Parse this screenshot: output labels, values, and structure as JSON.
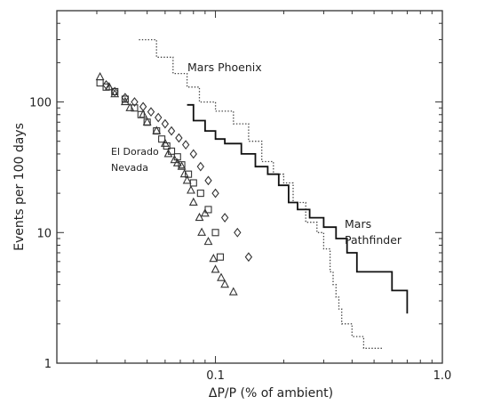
{
  "chart_data": {
    "type": "scatter",
    "xlabel": "ΔP/P (% of ambient)",
    "ylabel": "Events per 100 days",
    "x_scale": "log",
    "y_scale": "log",
    "xlim": [
      0.02,
      1.0
    ],
    "ylim": [
      1,
      500
    ],
    "x_ticks": [
      {
        "value": 0.1,
        "label": "0.1"
      },
      {
        "value": 1.0,
        "label": "1.0"
      }
    ],
    "y_ticks": [
      {
        "value": 1,
        "label": "1"
      },
      {
        "value": 10,
        "label": "10"
      },
      {
        "value": 100,
        "label": "100"
      }
    ],
    "grid": false,
    "annotations": [
      {
        "text": "Mars Phoenix"
      },
      {
        "text": "Mars"
      },
      {
        "text": "Pathfinder"
      },
      {
        "text": "El Dorado"
      },
      {
        "text": "Nevada"
      }
    ],
    "series": [
      {
        "name": "Mars Phoenix",
        "style": "dotted-step",
        "color": "#444444",
        "x": [
          0.046,
          0.055,
          0.065,
          0.075,
          0.085,
          0.1,
          0.12,
          0.14,
          0.16,
          0.18,
          0.2,
          0.22,
          0.25,
          0.28,
          0.3,
          0.32,
          0.33,
          0.34,
          0.35,
          0.36,
          0.4,
          0.42,
          0.45,
          0.5,
          0.55
        ],
        "y": [
          300,
          220,
          165,
          130,
          100,
          85,
          68,
          50,
          35,
          28,
          24,
          17,
          12,
          10,
          7.5,
          5,
          4,
          3.2,
          2.6,
          2.0,
          1.6,
          1.6,
          1.3,
          1.3,
          1.3
        ]
      },
      {
        "name": "Mars Pathfinder",
        "style": "solid-step",
        "color": "#111111",
        "x": [
          0.075,
          0.08,
          0.09,
          0.1,
          0.11,
          0.13,
          0.15,
          0.17,
          0.19,
          0.21,
          0.23,
          0.26,
          0.3,
          0.34,
          0.38,
          0.42,
          0.5,
          0.6,
          0.7
        ],
        "y": [
          95,
          72,
          60,
          52,
          48,
          40,
          32,
          28,
          23,
          17,
          15,
          13,
          11,
          9,
          7,
          5,
          5,
          3.6,
          2.4
        ]
      },
      {
        "name": "El Dorado triangles",
        "marker": "triangle",
        "color": "#333333",
        "x": [
          0.031,
          0.034,
          0.036,
          0.04,
          0.042,
          0.048,
          0.05,
          0.055,
          0.06,
          0.062,
          0.066,
          0.068,
          0.071,
          0.073,
          0.075,
          0.078,
          0.08,
          0.085,
          0.087,
          0.09,
          0.093,
          0.098,
          0.1,
          0.106,
          0.11,
          0.12
        ],
        "y": [
          155,
          130,
          115,
          100,
          90,
          80,
          70,
          60,
          48,
          40,
          36,
          34,
          32,
          28,
          25,
          21,
          17,
          13,
          10,
          14,
          8.5,
          6.3,
          5.2,
          4.5,
          4.0,
          3.5
        ]
      },
      {
        "name": "El Dorado squares",
        "marker": "square",
        "color": "#333333",
        "x": [
          0.031,
          0.033,
          0.036,
          0.04,
          0.044,
          0.047,
          0.05,
          0.055,
          0.058,
          0.061,
          0.064,
          0.068,
          0.071,
          0.076,
          0.08,
          0.086,
          0.093,
          0.1,
          0.105
        ],
        "y": [
          140,
          130,
          120,
          105,
          90,
          80,
          70,
          60,
          52,
          46,
          42,
          38,
          33,
          28,
          24,
          20,
          15,
          10,
          6.5
        ]
      },
      {
        "name": "Nevada diamonds",
        "marker": "diamond",
        "color": "#333333",
        "x": [
          0.033,
          0.036,
          0.04,
          0.044,
          0.048,
          0.052,
          0.056,
          0.06,
          0.064,
          0.069,
          0.074,
          0.08,
          0.086,
          0.093,
          0.1,
          0.11,
          0.125,
          0.14
        ],
        "y": [
          135,
          120,
          108,
          100,
          92,
          84,
          76,
          68,
          60,
          53,
          47,
          40,
          32,
          25,
          20,
          13,
          10,
          6.5
        ]
      }
    ]
  }
}
